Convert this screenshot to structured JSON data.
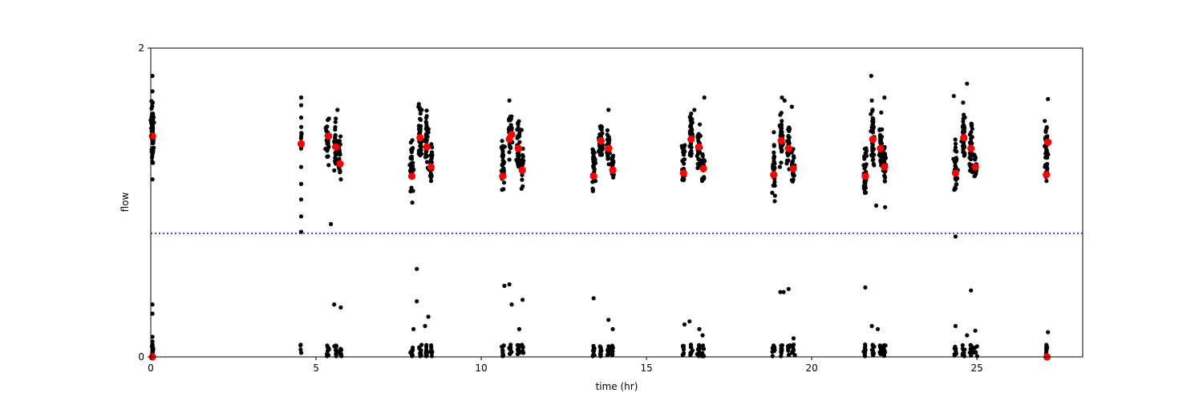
{
  "chart_data": {
    "type": "scatter",
    "title": "",
    "xlabel": "time (hr)",
    "ylabel": "flow",
    "xlim": [
      0,
      28.2
    ],
    "ylim": [
      0,
      2
    ],
    "xticks": [
      0,
      5,
      10,
      15,
      20,
      25
    ],
    "yticks": [
      0,
      2
    ],
    "grid": false,
    "legend": "none",
    "colors": {
      "raw": "#000000",
      "summary": "#ff0000",
      "threshold": "#0000ff"
    },
    "threshold_line": {
      "y": 0.8,
      "style": "dotted"
    },
    "series": [
      {
        "role": "raw",
        "clusters": [
          {
            "t": 0.05,
            "center": 1.45,
            "spread": 0.09,
            "n": 70,
            "t_spread": 0.04
          },
          {
            "t": 4.55,
            "center": 1.4,
            "spread": 0.05,
            "n": 10,
            "t_spread": 0.02
          },
          {
            "t": 5.35,
            "center": 1.42,
            "spread": 0.07,
            "n": 30,
            "t_spread": 0.05
          },
          {
            "t": 5.58,
            "center": 1.37,
            "spread": 0.07,
            "n": 30,
            "t_spread": 0.05
          },
          {
            "t": 5.72,
            "center": 1.28,
            "spread": 0.06,
            "n": 25,
            "t_spread": 0.04
          },
          {
            "t": 7.9,
            "center": 1.22,
            "spread": 0.09,
            "n": 35,
            "t_spread": 0.05
          },
          {
            "t": 8.15,
            "center": 1.43,
            "spread": 0.08,
            "n": 40,
            "t_spread": 0.05
          },
          {
            "t": 8.35,
            "center": 1.4,
            "spread": 0.09,
            "n": 35,
            "t_spread": 0.05
          },
          {
            "t": 8.48,
            "center": 1.25,
            "spread": 0.06,
            "n": 25,
            "t_spread": 0.04
          },
          {
            "t": 10.65,
            "center": 1.22,
            "spread": 0.09,
            "n": 35,
            "t_spread": 0.05
          },
          {
            "t": 10.88,
            "center": 1.43,
            "spread": 0.08,
            "n": 40,
            "t_spread": 0.05
          },
          {
            "t": 11.12,
            "center": 1.37,
            "spread": 0.08,
            "n": 35,
            "t_spread": 0.05
          },
          {
            "t": 11.24,
            "center": 1.23,
            "spread": 0.06,
            "n": 25,
            "t_spread": 0.04
          },
          {
            "t": 13.4,
            "center": 1.22,
            "spread": 0.08,
            "n": 35,
            "t_spread": 0.05
          },
          {
            "t": 13.62,
            "center": 1.41,
            "spread": 0.06,
            "n": 40,
            "t_spread": 0.05
          },
          {
            "t": 13.85,
            "center": 1.36,
            "spread": 0.06,
            "n": 35,
            "t_spread": 0.05
          },
          {
            "t": 13.98,
            "center": 1.24,
            "spread": 0.05,
            "n": 25,
            "t_spread": 0.04
          },
          {
            "t": 16.12,
            "center": 1.24,
            "spread": 0.08,
            "n": 35,
            "t_spread": 0.05
          },
          {
            "t": 16.35,
            "center": 1.42,
            "spread": 0.08,
            "n": 40,
            "t_spread": 0.05
          },
          {
            "t": 16.58,
            "center": 1.37,
            "spread": 0.08,
            "n": 35,
            "t_spread": 0.05
          },
          {
            "t": 16.72,
            "center": 1.24,
            "spread": 0.05,
            "n": 25,
            "t_spread": 0.04
          },
          {
            "t": 18.85,
            "center": 1.22,
            "spread": 0.08,
            "n": 35,
            "t_spread": 0.05
          },
          {
            "t": 19.08,
            "center": 1.41,
            "spread": 0.07,
            "n": 40,
            "t_spread": 0.05
          },
          {
            "t": 19.3,
            "center": 1.36,
            "spread": 0.07,
            "n": 35,
            "t_spread": 0.05
          },
          {
            "t": 19.44,
            "center": 1.24,
            "spread": 0.05,
            "n": 25,
            "t_spread": 0.04
          },
          {
            "t": 21.62,
            "center": 1.22,
            "spread": 0.09,
            "n": 35,
            "t_spread": 0.05
          },
          {
            "t": 21.85,
            "center": 1.42,
            "spread": 0.09,
            "n": 40,
            "t_spread": 0.05
          },
          {
            "t": 22.08,
            "center": 1.36,
            "spread": 0.09,
            "n": 35,
            "t_spread": 0.05
          },
          {
            "t": 22.2,
            "center": 1.24,
            "spread": 0.06,
            "n": 25,
            "t_spread": 0.04
          },
          {
            "t": 24.35,
            "center": 1.24,
            "spread": 0.09,
            "n": 35,
            "t_spread": 0.05
          },
          {
            "t": 24.6,
            "center": 1.42,
            "spread": 0.08,
            "n": 40,
            "t_spread": 0.05
          },
          {
            "t": 24.82,
            "center": 1.37,
            "spread": 0.08,
            "n": 35,
            "t_spread": 0.05
          },
          {
            "t": 24.95,
            "center": 1.25,
            "spread": 0.06,
            "n": 25,
            "t_spread": 0.04
          },
          {
            "t": 27.1,
            "center": 1.33,
            "spread": 0.1,
            "n": 45,
            "t_spread": 0.05
          }
        ],
        "outliers": [
          [
            0.05,
            1.82
          ],
          [
            0.05,
            1.72
          ],
          [
            0.05,
            1.15
          ],
          [
            4.55,
            1.68
          ],
          [
            4.55,
            1.63
          ],
          [
            4.55,
            1.55
          ],
          [
            4.55,
            1.23
          ],
          [
            4.55,
            1.12
          ],
          [
            4.55,
            1.02
          ],
          [
            4.55,
            0.91
          ],
          [
            4.55,
            0.81
          ],
          [
            5.45,
            0.86
          ],
          [
            5.65,
            1.6
          ],
          [
            8.1,
            1.62
          ],
          [
            8.2,
            1.6
          ],
          [
            8.35,
            1.56
          ],
          [
            10.85,
            1.66
          ],
          [
            11.22,
            1.47
          ],
          [
            13.85,
            1.6
          ],
          [
            16.45,
            1.6
          ],
          [
            16.75,
            1.68
          ],
          [
            19.1,
            1.68
          ],
          [
            19.18,
            1.66
          ],
          [
            19.4,
            1.62
          ],
          [
            21.8,
            1.82
          ],
          [
            21.82,
            1.66
          ],
          [
            21.95,
            0.98
          ],
          [
            22.2,
            1.68
          ],
          [
            22.22,
            0.97
          ],
          [
            24.3,
            1.69
          ],
          [
            24.35,
            0.78
          ],
          [
            24.7,
            1.77
          ],
          [
            27.15,
            1.67
          ],
          [
            0.05,
            0.34
          ],
          [
            0.05,
            0.28
          ],
          [
            0.05,
            0.13
          ],
          [
            0.05,
            0.1
          ],
          [
            0.05,
            0.08
          ],
          [
            5.55,
            0.34
          ],
          [
            5.75,
            0.32
          ],
          [
            8.05,
            0.57
          ],
          [
            7.95,
            0.18
          ],
          [
            8.05,
            0.36
          ],
          [
            8.3,
            0.2
          ],
          [
            8.4,
            0.26
          ],
          [
            10.7,
            0.46
          ],
          [
            10.85,
            0.47
          ],
          [
            10.92,
            0.34
          ],
          [
            11.15,
            0.18
          ],
          [
            11.25,
            0.37
          ],
          [
            13.4,
            0.38
          ],
          [
            13.85,
            0.24
          ],
          [
            13.98,
            0.18
          ],
          [
            16.15,
            0.21
          ],
          [
            16.3,
            0.23
          ],
          [
            16.6,
            0.18
          ],
          [
            16.7,
            0.14
          ],
          [
            19.05,
            0.42
          ],
          [
            19.15,
            0.42
          ],
          [
            19.3,
            0.44
          ],
          [
            19.45,
            0.12
          ],
          [
            21.62,
            0.45
          ],
          [
            21.82,
            0.2
          ],
          [
            22.0,
            0.18
          ],
          [
            24.35,
            0.2
          ],
          [
            24.7,
            0.14
          ],
          [
            24.82,
            0.43
          ],
          [
            24.95,
            0.17
          ],
          [
            27.15,
            0.16
          ]
        ],
        "baseline_clusters": [
          {
            "t": 0.05,
            "n": 12
          },
          {
            "t": 4.55,
            "n": 4
          },
          {
            "t": 5.35,
            "n": 10
          },
          {
            "t": 5.6,
            "n": 10
          },
          {
            "t": 5.75,
            "n": 8
          },
          {
            "t": 7.9,
            "n": 10
          },
          {
            "t": 8.15,
            "n": 10
          },
          {
            "t": 8.35,
            "n": 10
          },
          {
            "t": 8.5,
            "n": 8
          },
          {
            "t": 10.65,
            "n": 10
          },
          {
            "t": 10.88,
            "n": 10
          },
          {
            "t": 11.12,
            "n": 10
          },
          {
            "t": 11.25,
            "n": 8
          },
          {
            "t": 13.4,
            "n": 10
          },
          {
            "t": 13.62,
            "n": 10
          },
          {
            "t": 13.85,
            "n": 10
          },
          {
            "t": 13.98,
            "n": 8
          },
          {
            "t": 16.12,
            "n": 10
          },
          {
            "t": 16.35,
            "n": 10
          },
          {
            "t": 16.58,
            "n": 10
          },
          {
            "t": 16.72,
            "n": 8
          },
          {
            "t": 18.85,
            "n": 10
          },
          {
            "t": 19.08,
            "n": 10
          },
          {
            "t": 19.3,
            "n": 10
          },
          {
            "t": 19.44,
            "n": 8
          },
          {
            "t": 21.62,
            "n": 10
          },
          {
            "t": 21.85,
            "n": 10
          },
          {
            "t": 22.08,
            "n": 10
          },
          {
            "t": 22.2,
            "n": 8
          },
          {
            "t": 24.35,
            "n": 10
          },
          {
            "t": 24.6,
            "n": 10
          },
          {
            "t": 24.82,
            "n": 10
          },
          {
            "t": 24.95,
            "n": 8
          },
          {
            "t": 27.1,
            "n": 10
          }
        ]
      },
      {
        "role": "summary",
        "points": [
          [
            0.05,
            1.43
          ],
          [
            0.05,
            0.0
          ],
          [
            4.55,
            1.38
          ],
          [
            5.38,
            1.43
          ],
          [
            5.6,
            1.36
          ],
          [
            5.73,
            1.25
          ],
          [
            7.9,
            1.17
          ],
          [
            8.15,
            1.42
          ],
          [
            8.35,
            1.36
          ],
          [
            8.48,
            1.23
          ],
          [
            10.65,
            1.17
          ],
          [
            10.85,
            1.41
          ],
          [
            10.92,
            1.44
          ],
          [
            11.12,
            1.35
          ],
          [
            11.24,
            1.21
          ],
          [
            13.4,
            1.17
          ],
          [
            13.62,
            1.4
          ],
          [
            13.85,
            1.35
          ],
          [
            13.98,
            1.21
          ],
          [
            16.12,
            1.19
          ],
          [
            16.35,
            1.41
          ],
          [
            16.58,
            1.36
          ],
          [
            16.72,
            1.22
          ],
          [
            18.85,
            1.18
          ],
          [
            19.08,
            1.4
          ],
          [
            19.3,
            1.35
          ],
          [
            19.44,
            1.22
          ],
          [
            21.62,
            1.17
          ],
          [
            21.85,
            1.41
          ],
          [
            22.08,
            1.35
          ],
          [
            22.2,
            1.23
          ],
          [
            24.35,
            1.19
          ],
          [
            24.6,
            1.42
          ],
          [
            24.82,
            1.35
          ],
          [
            24.95,
            1.23
          ],
          [
            27.1,
            1.18
          ],
          [
            27.15,
            1.39
          ],
          [
            27.12,
            0.0
          ]
        ]
      }
    ]
  }
}
